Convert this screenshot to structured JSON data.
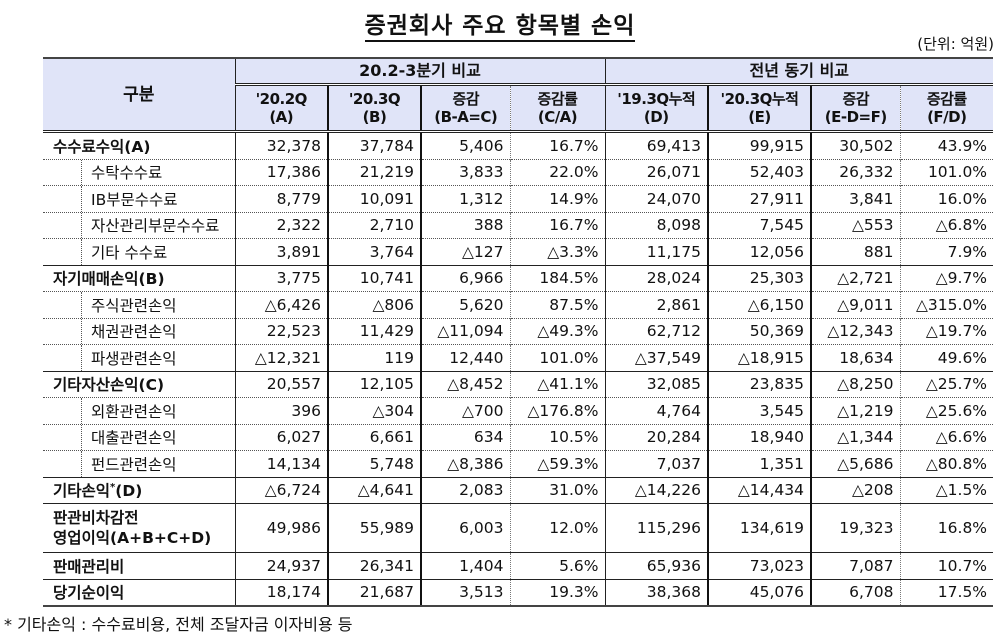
{
  "title": "증권회사 주요 항목별 손익",
  "unit": "(단위: 억원)",
  "header": {
    "category": "구분",
    "group1": "20.2-3분기 비교",
    "group2": "전년 동기 비교",
    "columns": [
      {
        "line1": "'20.2Q",
        "line2": "(A)"
      },
      {
        "line1": "'20.3Q",
        "line2": "(B)"
      },
      {
        "line1": "증감",
        "line2": "(B-A=C)"
      },
      {
        "line1": "증감률",
        "line2": "(C/A)"
      },
      {
        "line1": "'19.3Q누적",
        "line2": "(D)"
      },
      {
        "line1": "'20.3Q누적",
        "line2": "(E)"
      },
      {
        "line1": "증감",
        "line2": "(E-D=F)"
      },
      {
        "line1": "증감률",
        "line2": "(F/D)"
      }
    ]
  },
  "rows": [
    {
      "label": "수수료수익(A)",
      "type": "main",
      "values": [
        "32,378",
        "37,784",
        "5,406",
        "16.7%",
        "69,413",
        "99,915",
        "30,502",
        "43.9%"
      ]
    },
    {
      "label": "수탁수수료",
      "type": "sub",
      "values": [
        "17,386",
        "21,219",
        "3,833",
        "22.0%",
        "26,071",
        "52,403",
        "26,332",
        "101.0%"
      ]
    },
    {
      "label": "IB부문수수료",
      "type": "sub",
      "values": [
        "8,779",
        "10,091",
        "1,312",
        "14.9%",
        "24,070",
        "27,911",
        "3,841",
        "16.0%"
      ]
    },
    {
      "label": "자산관리부문수수료",
      "type": "sub",
      "values": [
        "2,322",
        "2,710",
        "388",
        "16.7%",
        "8,098",
        "7,545",
        "△553",
        "△6.8%"
      ]
    },
    {
      "label": "기타 수수료",
      "type": "sub",
      "values": [
        "3,891",
        "3,764",
        "△127",
        "△3.3%",
        "11,175",
        "12,056",
        "881",
        "7.9%"
      ]
    },
    {
      "label": "자기매매손익(B)",
      "type": "main",
      "values": [
        "3,775",
        "10,741",
        "6,966",
        "184.5%",
        "28,024",
        "25,303",
        "△2,721",
        "△9.7%"
      ]
    },
    {
      "label": "주식관련손익",
      "type": "sub",
      "values": [
        "△6,426",
        "△806",
        "5,620",
        "87.5%",
        "2,861",
        "△6,150",
        "△9,011",
        "△315.0%"
      ]
    },
    {
      "label": "채권관련손익",
      "type": "sub",
      "values": [
        "22,523",
        "11,429",
        "△11,094",
        "△49.3%",
        "62,712",
        "50,369",
        "△12,343",
        "△19.7%"
      ]
    },
    {
      "label": "파생관련손익",
      "type": "sub",
      "values": [
        "△12,321",
        "119",
        "12,440",
        "101.0%",
        "△37,549",
        "△18,915",
        "18,634",
        "49.6%"
      ]
    },
    {
      "label": "기타자산손익(C)",
      "type": "main",
      "values": [
        "20,557",
        "12,105",
        "△8,452",
        "△41.1%",
        "32,085",
        "23,835",
        "△8,250",
        "△25.7%"
      ]
    },
    {
      "label": "외환관련손익",
      "type": "sub",
      "values": [
        "396",
        "△304",
        "△700",
        "△176.8%",
        "4,764",
        "3,545",
        "△1,219",
        "△25.6%"
      ]
    },
    {
      "label": "대출관련손익",
      "type": "sub",
      "values": [
        "6,027",
        "6,661",
        "634",
        "10.5%",
        "20,284",
        "18,940",
        "△1,344",
        "△6.6%"
      ]
    },
    {
      "label": "펀드관련손익",
      "type": "sub",
      "values": [
        "14,134",
        "5,748",
        "△8,386",
        "△59.3%",
        "7,037",
        "1,351",
        "△5,686",
        "△80.8%"
      ]
    },
    {
      "label": "기타손익",
      "label_sup": "*",
      "label_suffix": "(D)",
      "type": "main",
      "values": [
        "△6,724",
        "△4,641",
        "2,083",
        "31.0%",
        "△14,226",
        "△14,434",
        "△208",
        "△1.5%"
      ]
    },
    {
      "label": "판관비차감전",
      "label_line2": "영업이익(A+B+C+D)",
      "type": "main",
      "tall": true,
      "values": [
        "49,986",
        "55,989",
        "6,003",
        "12.0%",
        "115,296",
        "134,619",
        "19,323",
        "16.8%"
      ]
    },
    {
      "label": "판매관리비",
      "type": "main",
      "values": [
        "24,937",
        "26,341",
        "1,404",
        "5.6%",
        "65,936",
        "73,023",
        "7,087",
        "10.7%"
      ]
    },
    {
      "label": "당기순이익",
      "type": "main",
      "values": [
        "18,174",
        "21,687",
        "3,513",
        "19.3%",
        "38,368",
        "45,076",
        "6,708",
        "17.5%"
      ]
    }
  ],
  "footnote": "* 기타손익 : 수수료비용, 전체 조달자금 이자비용 등"
}
